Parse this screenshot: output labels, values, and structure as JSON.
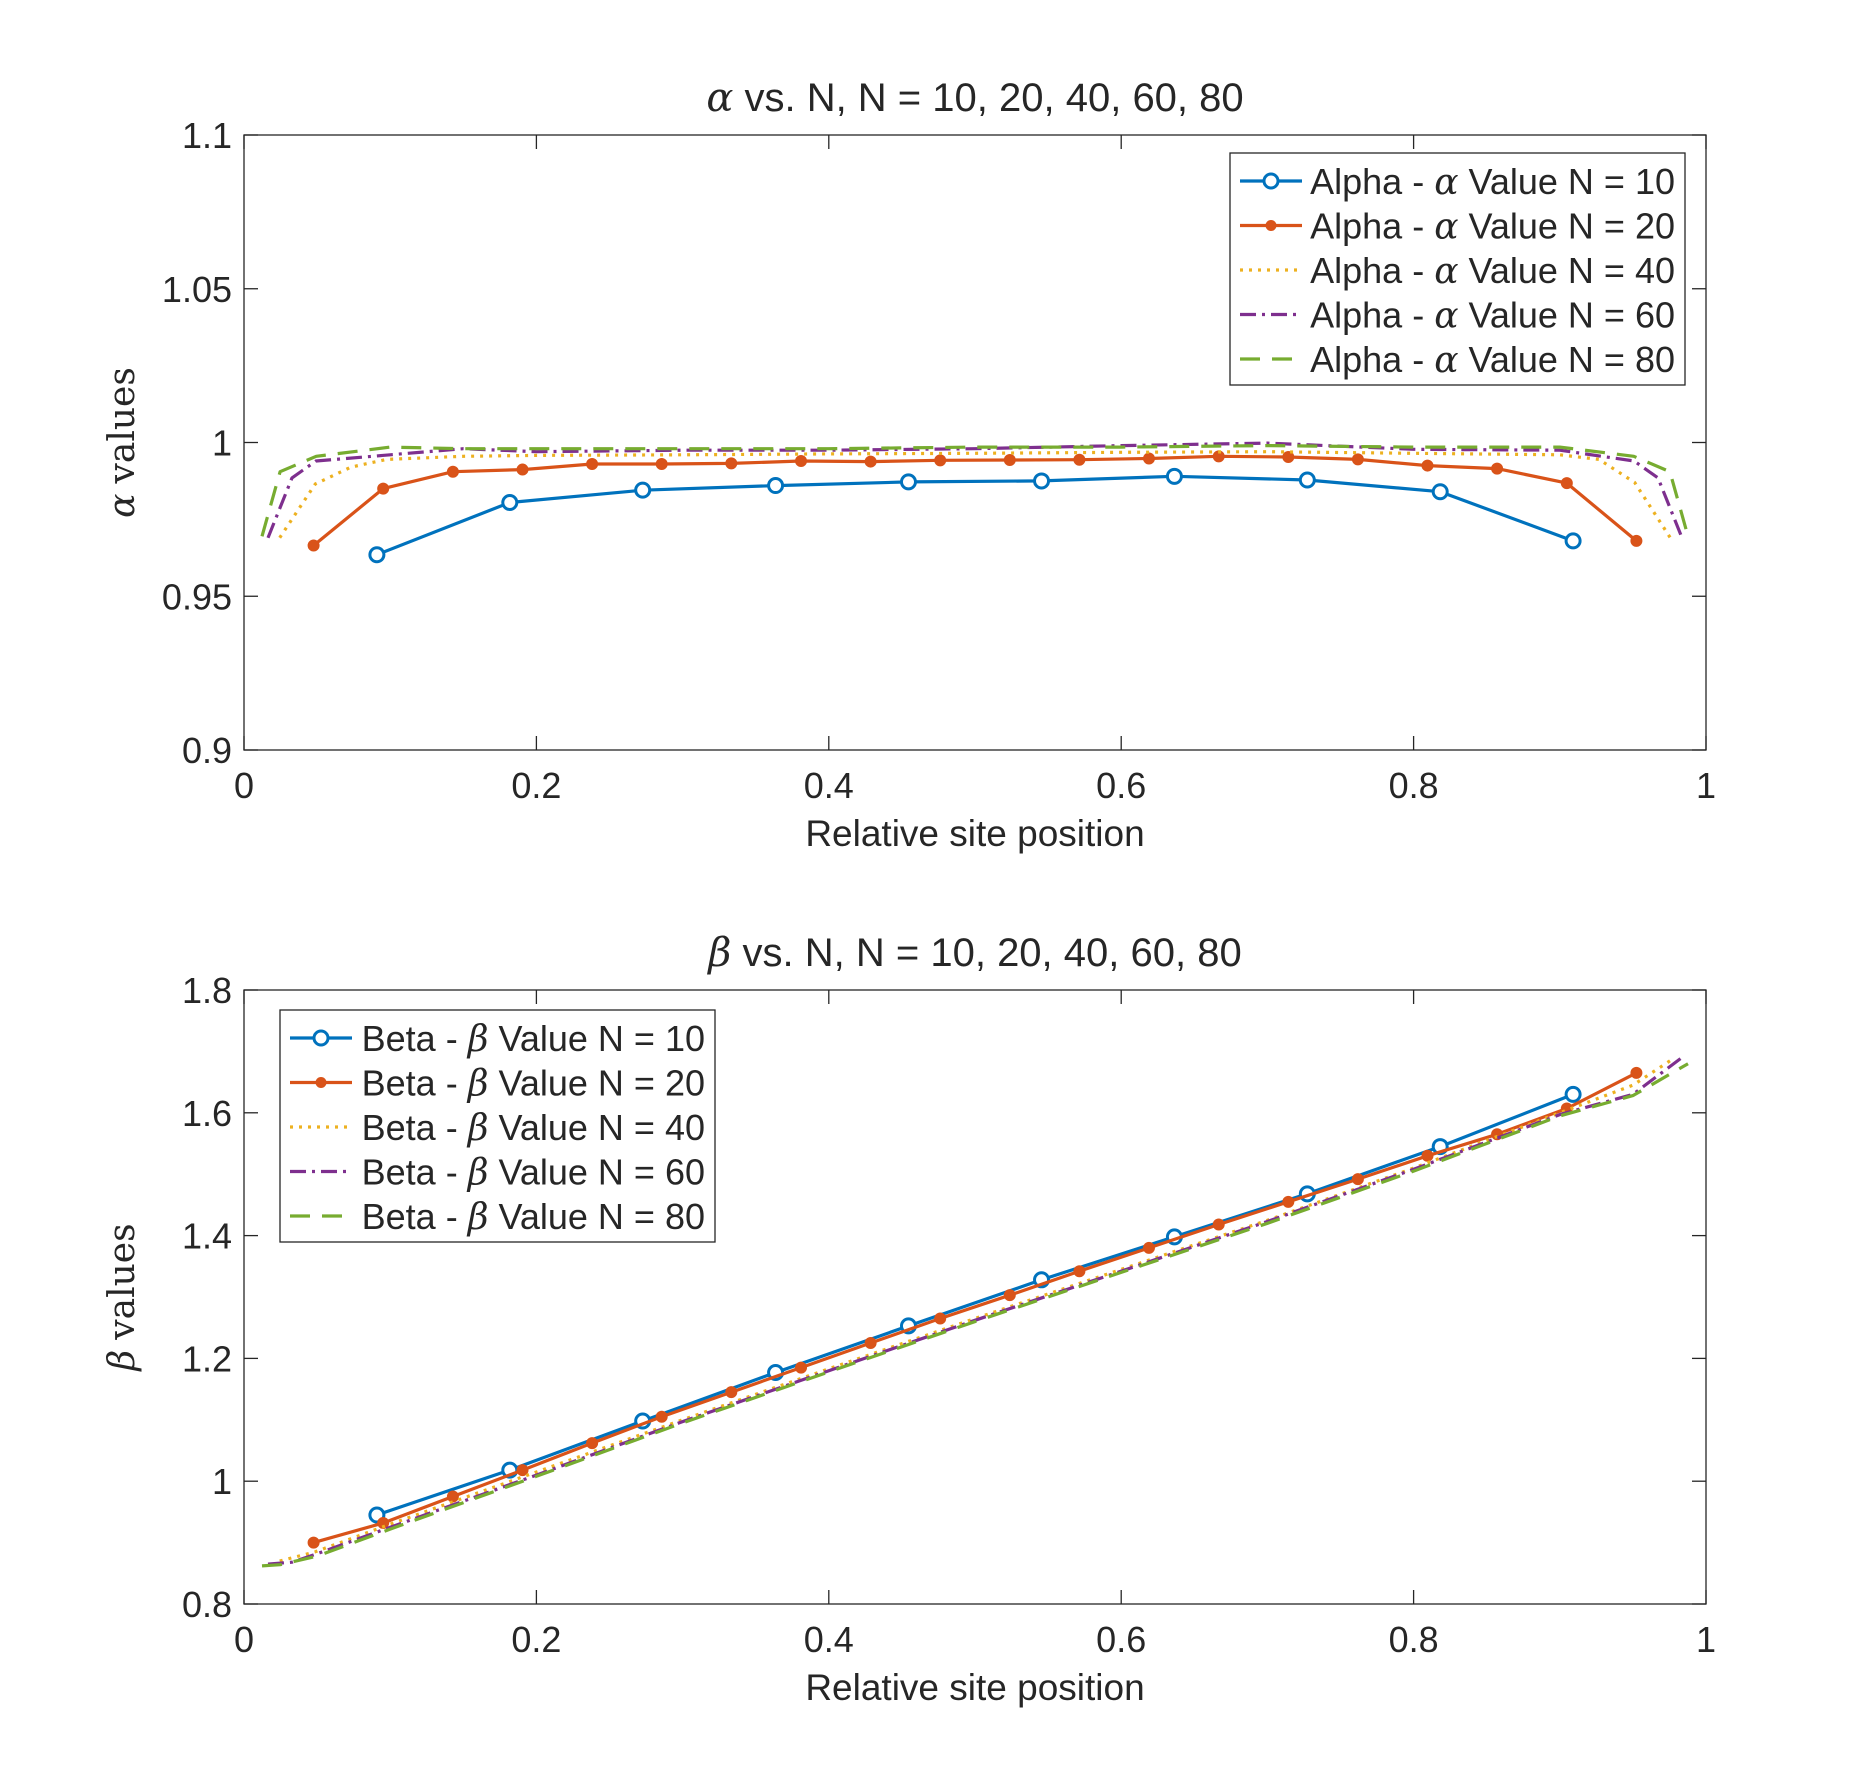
{
  "chart_data": [
    {
      "type": "line",
      "title": "α vs. N, N = 10, 20, 40, 60, 80",
      "title_greek": "α",
      "title_rest": "vs. N, N = 10, 20, 40, 60, 80",
      "xlabel": "Relative site position",
      "ylabel": "α values",
      "ylabel_greek": "α",
      "ylabel_rest": "values",
      "xlim": [
        0,
        1
      ],
      "ylim": [
        0.9,
        1.1
      ],
      "xticks": [
        0,
        0.2,
        0.4,
        0.6,
        0.8,
        1
      ],
      "xtick_labels": [
        "0",
        "0.2",
        "0.4",
        "0.6",
        "0.8",
        "1"
      ],
      "yticks": [
        0.9,
        0.95,
        1,
        1.05,
        1.1
      ],
      "ytick_labels": [
        "0.9",
        "0.95",
        "1",
        "1.05",
        "1.1"
      ],
      "grid": false,
      "legend_position": "top-right",
      "series": [
        {
          "name": "Alpha - α Value N = 10",
          "label_pre": "Alpha - ",
          "label_greek": "α",
          "label_post": " Value N = 10",
          "color": "#0072BD",
          "style": "solid",
          "marker": "circle",
          "x": [
            0.0909,
            0.1818,
            0.2727,
            0.3636,
            0.4545,
            0.5455,
            0.6364,
            0.7273,
            0.8182,
            0.9091
          ],
          "y": [
            0.9635,
            0.9805,
            0.9845,
            0.986,
            0.9872,
            0.9875,
            0.989,
            0.9878,
            0.984,
            0.968
          ]
        },
        {
          "name": "Alpha - α Value N = 20",
          "label_pre": "Alpha - ",
          "label_greek": "α",
          "label_post": " Value N = 20",
          "color": "#D95319",
          "style": "solid",
          "marker": "dot",
          "x": [
            0.0476,
            0.0952,
            0.1429,
            0.1905,
            0.2381,
            0.2857,
            0.3333,
            0.381,
            0.4286,
            0.4762,
            0.5238,
            0.5714,
            0.619,
            0.6667,
            0.7143,
            0.7619,
            0.8095,
            0.8571,
            0.9048,
            0.9524
          ],
          "y": [
            0.9665,
            0.985,
            0.9905,
            0.9912,
            0.993,
            0.993,
            0.9932,
            0.994,
            0.9938,
            0.9942,
            0.9943,
            0.9944,
            0.9948,
            0.9955,
            0.9953,
            0.9945,
            0.9925,
            0.9915,
            0.9868,
            0.968
          ]
        },
        {
          "name": "Alpha - α Value N = 40",
          "label_pre": "Alpha - ",
          "label_greek": "α",
          "label_post": " Value N = 40",
          "color": "#EDB120",
          "style": "dotted",
          "marker": "none",
          "x": [
            0.0244,
            0.0488,
            0.0732,
            0.0976,
            0.15,
            0.2,
            0.3,
            0.4,
            0.5,
            0.6,
            0.7,
            0.8,
            0.9,
            0.9268,
            0.9512,
            0.9756
          ],
          "y": [
            0.969,
            0.9865,
            0.992,
            0.9945,
            0.9955,
            0.9958,
            0.996,
            0.9963,
            0.9965,
            0.9968,
            0.997,
            0.9965,
            0.996,
            0.9945,
            0.987,
            0.969
          ]
        },
        {
          "name": "Alpha - α Value N = 60",
          "label_pre": "Alpha - ",
          "label_greek": "α",
          "label_post": " Value N = 60",
          "color": "#7E2F8E",
          "style": "dashdot",
          "marker": "none",
          "x": [
            0.0164,
            0.0328,
            0.0492,
            0.1,
            0.15,
            0.2,
            0.3,
            0.4,
            0.5,
            0.6,
            0.7,
            0.8,
            0.9,
            0.9508,
            0.9672,
            0.9836
          ],
          "y": [
            0.969,
            0.9885,
            0.994,
            0.996,
            0.998,
            0.997,
            0.9975,
            0.9975,
            0.998,
            0.999,
            0.9998,
            0.9978,
            0.9975,
            0.994,
            0.9885,
            0.969
          ]
        },
        {
          "name": "Alpha - α Value N = 80",
          "label_pre": "Alpha - ",
          "label_greek": "α",
          "label_post": " Value N = 80",
          "color": "#77AC30",
          "style": "dashed",
          "marker": "none",
          "x": [
            0.0123,
            0.0247,
            0.0494,
            0.1,
            0.15,
            0.2,
            0.3,
            0.4,
            0.5,
            0.6,
            0.7,
            0.8,
            0.9,
            0.9506,
            0.9753,
            0.9877
          ],
          "y": [
            0.9695,
            0.9905,
            0.9955,
            0.9985,
            0.998,
            0.998,
            0.998,
            0.998,
            0.9985,
            0.9985,
            0.999,
            0.9985,
            0.9985,
            0.9955,
            0.9905,
            0.9695
          ]
        }
      ]
    },
    {
      "type": "line",
      "title": "β vs. N, N = 10, 20, 40, 60, 80",
      "title_greek": "β",
      "title_rest": "vs. N, N = 10, 20, 40, 60, 80",
      "xlabel": "Relative site position",
      "ylabel": "β values",
      "ylabel_greek": "β",
      "ylabel_rest": "values",
      "xlim": [
        0,
        1
      ],
      "ylim": [
        0.8,
        1.8
      ],
      "xticks": [
        0,
        0.2,
        0.4,
        0.6,
        0.8,
        1
      ],
      "xtick_labels": [
        "0",
        "0.2",
        "0.4",
        "0.6",
        "0.8",
        "1"
      ],
      "yticks": [
        0.8,
        1,
        1.2,
        1.4,
        1.6,
        1.8
      ],
      "ytick_labels": [
        "0.8",
        "1",
        "1.2",
        "1.4",
        "1.6",
        "1.8"
      ],
      "grid": false,
      "legend_position": "top-left",
      "series": [
        {
          "name": "Beta - β Value N = 10",
          "label_pre": "Beta - ",
          "label_greek": "β",
          "label_post": " Value N = 10",
          "color": "#0072BD",
          "style": "solid",
          "marker": "circle",
          "x": [
            0.0909,
            0.1818,
            0.2727,
            0.3636,
            0.4545,
            0.5455,
            0.6364,
            0.7273,
            0.8182,
            0.9091
          ],
          "y": [
            0.945,
            1.018,
            1.098,
            1.177,
            1.253,
            1.328,
            1.398,
            1.468,
            1.545,
            1.63
          ]
        },
        {
          "name": "Beta - β Value N = 20",
          "label_pre": "Beta - ",
          "label_greek": "β",
          "label_post": " Value N = 20",
          "color": "#D95319",
          "style": "solid",
          "marker": "dot",
          "x": [
            0.0476,
            0.0952,
            0.1429,
            0.1905,
            0.2381,
            0.2857,
            0.3333,
            0.381,
            0.4286,
            0.4762,
            0.5238,
            0.5714,
            0.619,
            0.6667,
            0.7143,
            0.7619,
            0.8095,
            0.8571,
            0.9048,
            0.9524
          ],
          "y": [
            0.9,
            0.932,
            0.975,
            1.018,
            1.062,
            1.105,
            1.145,
            1.185,
            1.225,
            1.265,
            1.303,
            1.342,
            1.38,
            1.418,
            1.455,
            1.492,
            1.53,
            1.565,
            1.607,
            1.665
          ]
        },
        {
          "name": "Beta - β Value N = 40",
          "label_pre": "Beta - ",
          "label_greek": "β",
          "label_post": " Value N = 40",
          "color": "#EDB120",
          "style": "dotted",
          "marker": "none",
          "x": [
            0.0244,
            0.0488,
            0.1,
            0.2,
            0.3,
            0.4,
            0.5,
            0.6,
            0.7,
            0.8,
            0.9,
            0.95,
            0.9756
          ],
          "y": [
            0.87,
            0.885,
            0.93,
            1.015,
            1.1,
            1.183,
            1.265,
            1.345,
            1.425,
            1.51,
            1.6,
            1.645,
            1.685
          ]
        },
        {
          "name": "Beta - β Value N = 60",
          "label_pre": "Beta - ",
          "label_greek": "β",
          "label_post": " Value N = 60",
          "color": "#7E2F8E",
          "style": "dashdot",
          "marker": "none",
          "x": [
            0.0164,
            0.0328,
            0.05,
            0.1,
            0.2,
            0.3,
            0.4,
            0.5,
            0.6,
            0.7,
            0.8,
            0.9,
            0.95,
            0.9836
          ],
          "y": [
            0.865,
            0.868,
            0.882,
            0.925,
            1.01,
            1.097,
            1.18,
            1.262,
            1.342,
            1.423,
            1.508,
            1.597,
            1.63,
            1.69
          ]
        },
        {
          "name": "Beta - β Value N = 80",
          "label_pre": "Beta - ",
          "label_greek": "β",
          "label_post": " Value N = 80",
          "color": "#77AC30",
          "style": "dashed",
          "marker": "none",
          "x": [
            0.0123,
            0.0247,
            0.05,
            0.1,
            0.2,
            0.3,
            0.4,
            0.5,
            0.6,
            0.7,
            0.8,
            0.9,
            0.95,
            0.9877
          ],
          "y": [
            0.862,
            0.864,
            0.878,
            0.922,
            1.008,
            1.095,
            1.178,
            1.26,
            1.34,
            1.42,
            1.505,
            1.595,
            1.628,
            1.68
          ]
        }
      ]
    }
  ]
}
